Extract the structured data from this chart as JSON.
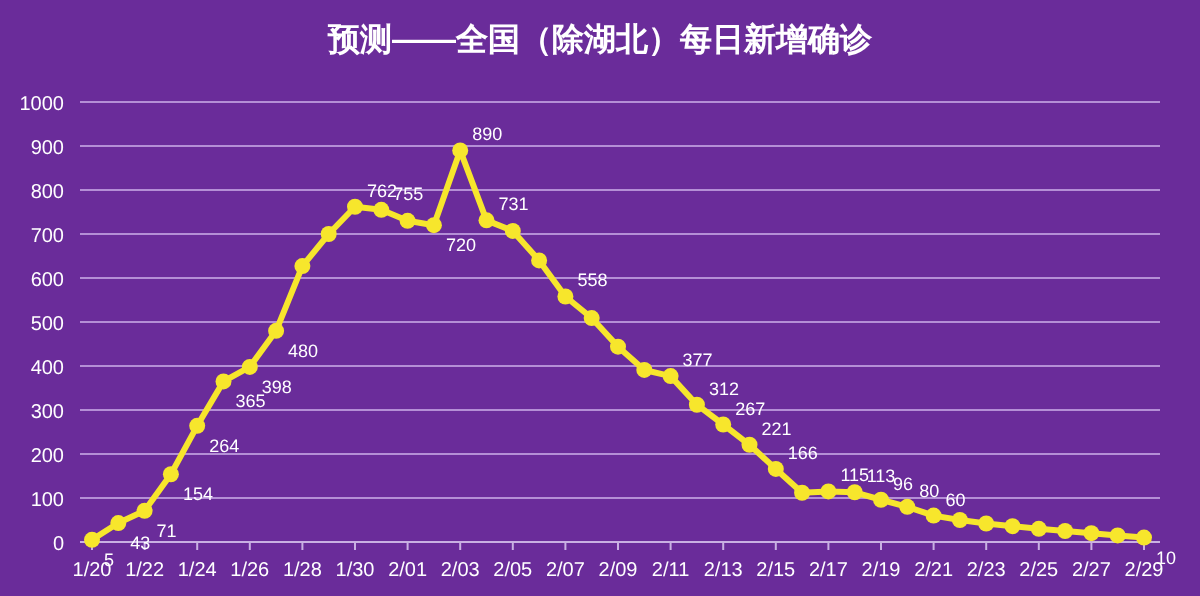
{
  "chart_data": {
    "type": "line",
    "title": "预测——全国（除湖北）每日新增确诊",
    "categories": [
      "1/20",
      null,
      "1/22",
      null,
      "1/24",
      null,
      "1/26",
      null,
      "1/28",
      null,
      "1/30",
      null,
      "2/01",
      null,
      "2/03",
      null,
      "2/05",
      null,
      "2/07",
      null,
      "2/09",
      null,
      "2/11",
      null,
      "2/13",
      null,
      "2/15",
      null,
      "2/17",
      null,
      "2/19",
      null,
      "2/21",
      null,
      "2/23",
      null,
      "2/25",
      null,
      "2/27",
      null,
      "2/29"
    ],
    "series": [
      {
        "color": "#f7e62c",
        "values": [
          5,
          43,
          71,
          154,
          264,
          365,
          398,
          480,
          627,
          700,
          762,
          755,
          730,
          720,
          890,
          731,
          707,
          640,
          558,
          509,
          444,
          391,
          377,
          312,
          267,
          221,
          166,
          112,
          115,
          113,
          96,
          80,
          60,
          50,
          42,
          36,
          30,
          25,
          20,
          15,
          10
        ],
        "value_labels": [
          "5",
          "43",
          "71",
          "154",
          "264",
          "365",
          "398",
          "480",
          null,
          null,
          "762",
          "755",
          null,
          "720",
          "890",
          "731",
          null,
          null,
          "558",
          null,
          null,
          null,
          "377",
          "312",
          "267",
          "221",
          "166",
          null,
          "115",
          "113",
          "96",
          "80",
          "60",
          null,
          null,
          null,
          null,
          null,
          null,
          null,
          "10"
        ]
      }
    ],
    "ylim": [
      0,
      1000
    ],
    "yticks": [
      0,
      100,
      200,
      300,
      400,
      500,
      600,
      700,
      800,
      900,
      1000
    ],
    "grid": "y",
    "marker": "circle"
  }
}
